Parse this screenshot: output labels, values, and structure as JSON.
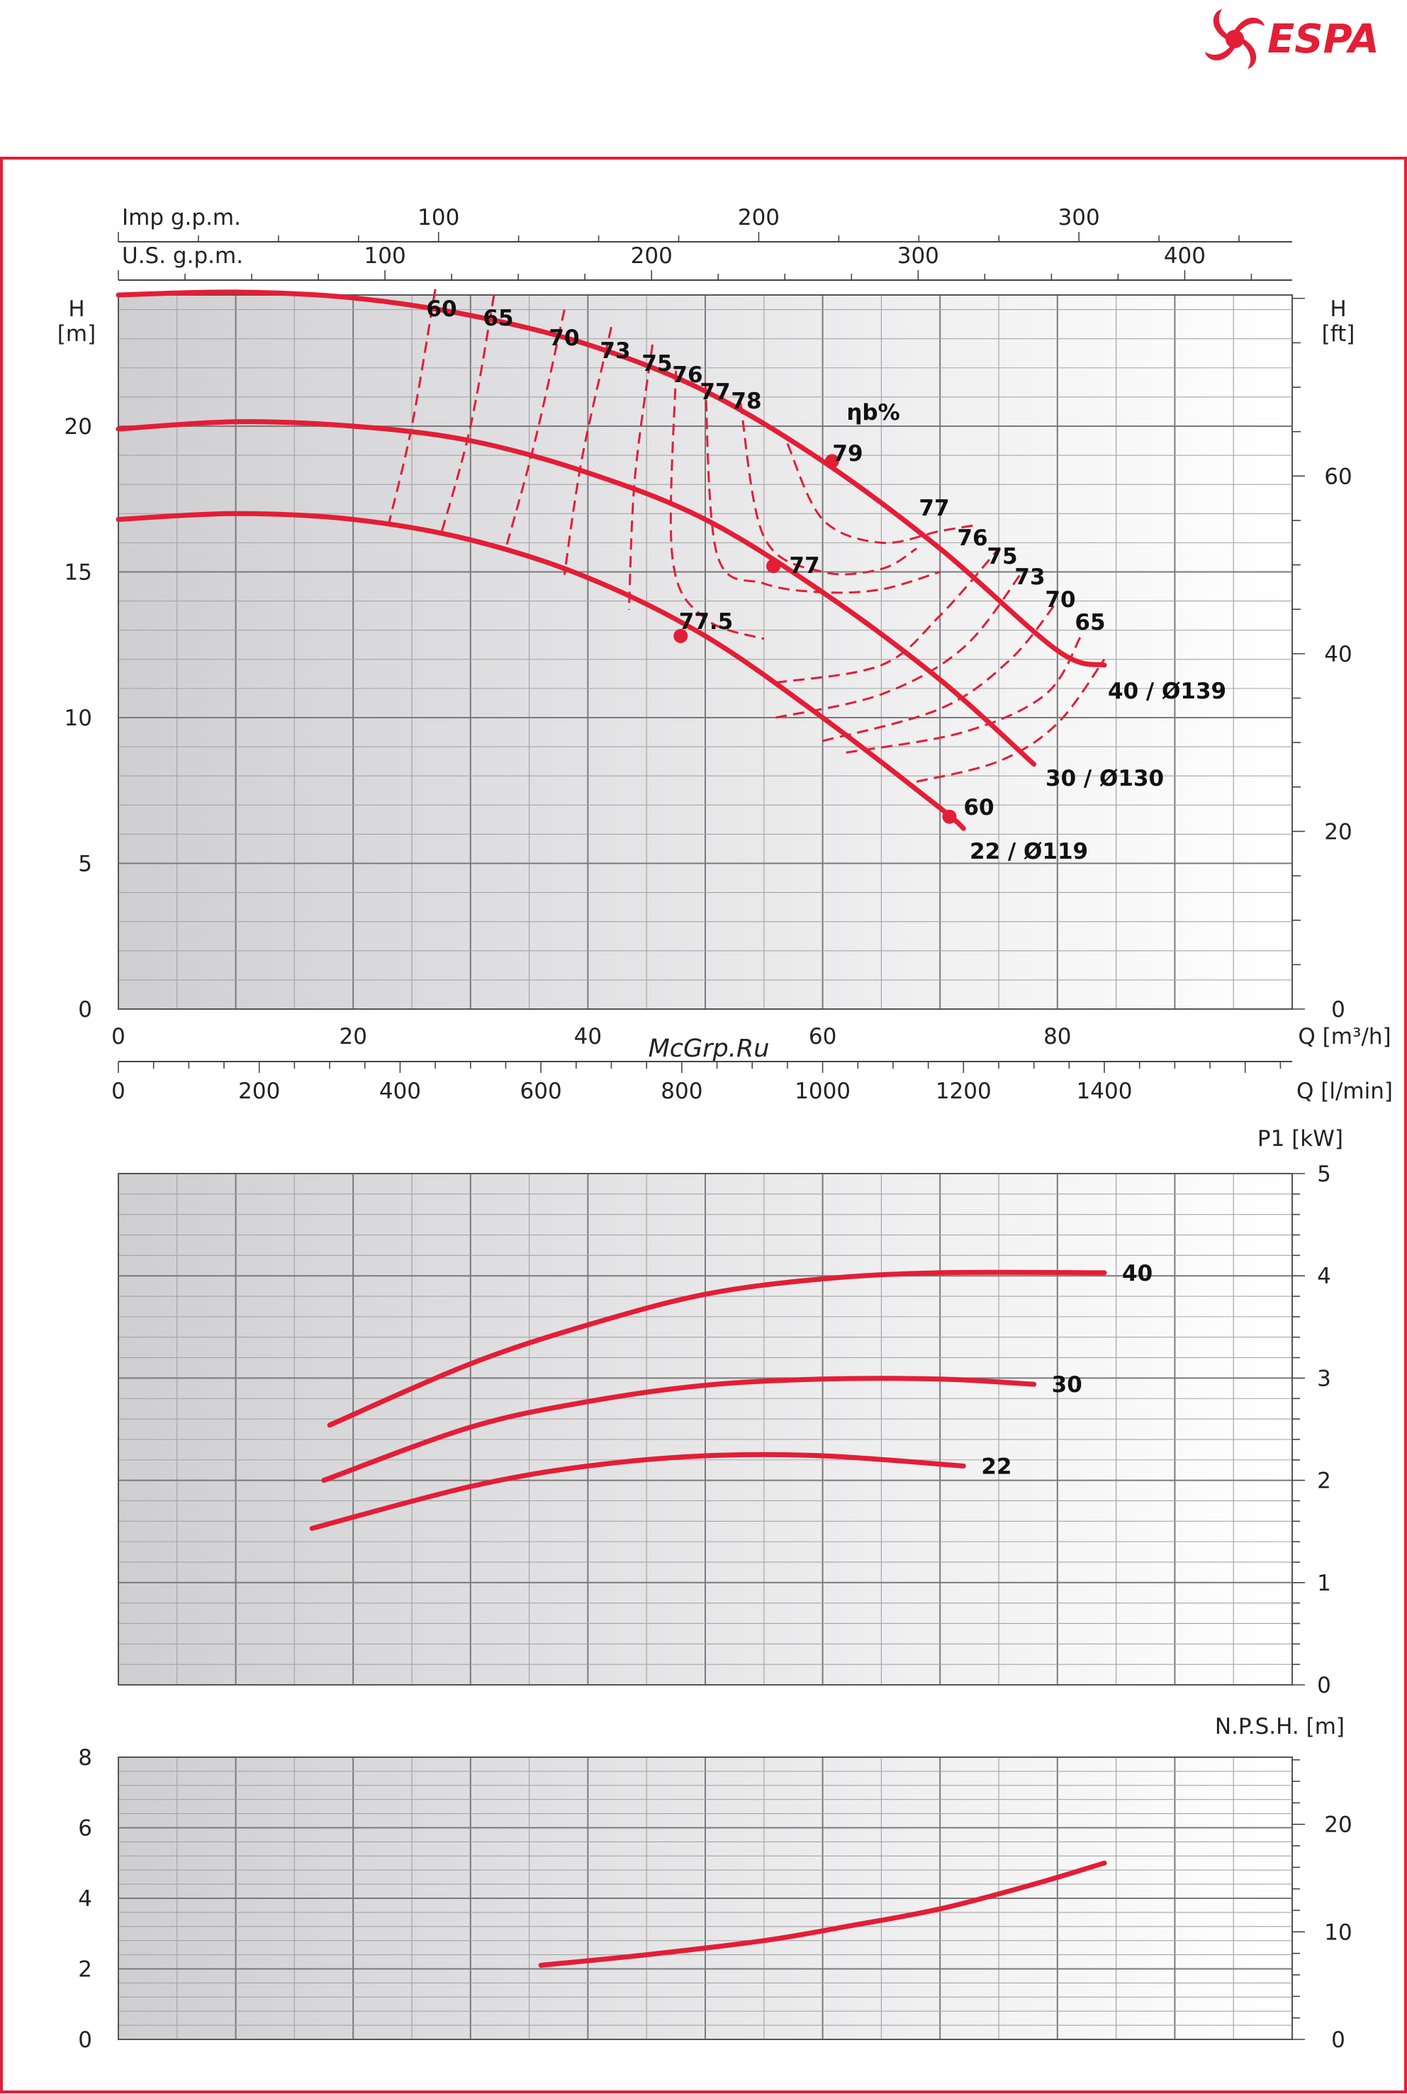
{
  "brand": {
    "name": "ESPA",
    "color": "#e31e36"
  },
  "watermark": "McGrp.Ru",
  "colors": {
    "curve": "#e31e36",
    "grid_major": "#7a7a7a",
    "grid_minor": "#a5a5a5",
    "frame": "#e31e36"
  },
  "chart_data": [
    {
      "type": "line",
      "title": "",
      "x": {
        "label": "Q [m³/h]",
        "range": [
          0,
          100
        ],
        "ticks": [
          0,
          20,
          40,
          60,
          80
        ]
      },
      "secondary_x": [
        {
          "label": "Imp g.p.m.",
          "ticks": [
            100,
            200,
            300
          ],
          "factor": 3.666
        },
        {
          "label": "U.S. g.p.m.",
          "ticks": [
            100,
            200,
            300,
            400
          ],
          "factor": 4.403
        },
        {
          "label": "Q [l/min]",
          "ticks": [
            0,
            200,
            400,
            600,
            800,
            1000,
            1200,
            1400
          ],
          "factor": 16.667
        }
      ],
      "y": {
        "label_line1": "H",
        "label_line2": "[m]",
        "range": [
          0,
          24.5
        ],
        "ticks": [
          0,
          5,
          10,
          15,
          20
        ]
      },
      "secondary_y": {
        "label_line1": "H",
        "label_line2": "[ft]",
        "ticks": [
          0,
          20,
          40,
          60
        ],
        "factor": 3.2808
      },
      "grid": true,
      "series": [
        {
          "name": "40 / Ø139",
          "x": [
            0,
            10,
            20,
            30,
            40,
            50,
            60,
            70,
            80,
            84
          ],
          "y": [
            24.5,
            24.6,
            24.4,
            23.8,
            22.8,
            21.2,
            18.8,
            15.8,
            12.3,
            11.8
          ]
        },
        {
          "name": "30 / Ø130",
          "x": [
            0,
            10,
            20,
            30,
            40,
            50,
            60,
            70,
            78
          ],
          "y": [
            19.9,
            20.15,
            20.0,
            19.5,
            18.4,
            16.8,
            14.3,
            11.3,
            8.4
          ]
        },
        {
          "name": "22 / Ø119",
          "x": [
            0,
            10,
            20,
            30,
            40,
            50,
            60,
            70,
            72
          ],
          "y": [
            16.8,
            17.0,
            16.8,
            16.1,
            14.8,
            12.8,
            10.0,
            6.9,
            6.2
          ]
        }
      ],
      "bep_points": [
        {
          "x": 60.8,
          "y": 18.8,
          "label": "79"
        },
        {
          "x": 55.8,
          "y": 15.2,
          "label": "77"
        },
        {
          "x": 47.9,
          "y": 12.8,
          "label": "77.5"
        },
        {
          "x": 70.8,
          "y": 6.6,
          "label": "60"
        }
      ],
      "efficiency_label": "ηb%",
      "efficiency_curves": [
        {
          "label": "60",
          "x": [
            27,
            25,
            23
          ],
          "y": [
            24.7,
            20.0,
            16.6
          ]
        },
        {
          "label": "65",
          "x": [
            32,
            30,
            27.5
          ],
          "y": [
            24.5,
            20.0,
            16.3
          ]
        },
        {
          "label": "70",
          "x": [
            38,
            35.5,
            33
          ],
          "y": [
            24.0,
            19.5,
            15.8
          ]
        },
        {
          "label": "73",
          "x": [
            42,
            39.5,
            38
          ],
          "y": [
            23.4,
            18.9,
            14.9
          ]
        },
        {
          "label": "75",
          "x": [
            45.5,
            44,
            43.5
          ],
          "y": [
            22.8,
            18.2,
            13.7
          ]
        },
        {
          "label": "76",
          "x": [
            47.5,
            47.2,
            50,
            55
          ],
          "y": [
            21.9,
            15.5,
            13.4,
            12.7
          ]
        },
        {
          "label": "77",
          "x": [
            50,
            51,
            55,
            60,
            65,
            70
          ],
          "y": [
            21.5,
            15.6,
            14.6,
            14.3,
            14.4,
            15.0
          ]
        },
        {
          "label": "78",
          "x": [
            53,
            55,
            60,
            65,
            68
          ],
          "y": [
            20.8,
            16.2,
            15.0,
            15.1,
            15.8
          ]
        },
        {
          "label": "77",
          "x": [
            57,
            60,
            65,
            70,
            73
          ],
          "y": [
            19.4,
            16.8,
            16.0,
            16.4,
            16.6
          ]
        },
        {
          "label": "76",
          "x": [
            56,
            65,
            70,
            75
          ],
          "y": [
            11.2,
            11.8,
            13.5,
            15.8
          ]
        },
        {
          "label": "75",
          "x": [
            56,
            65,
            72,
            77
          ],
          "y": [
            10.0,
            10.8,
            12.4,
            15.0
          ]
        },
        {
          "label": "73",
          "x": [
            60,
            70,
            76,
            80
          ],
          "y": [
            9.2,
            10.3,
            12.0,
            14.0
          ]
        },
        {
          "label": "70",
          "x": [
            62,
            72,
            79,
            82
          ],
          "y": [
            8.8,
            9.5,
            10.8,
            12.8
          ]
        },
        {
          "label": "65",
          "x": [
            68,
            75,
            80,
            84
          ],
          "y": [
            7.8,
            8.5,
            9.8,
            12.0
          ]
        }
      ]
    },
    {
      "type": "line",
      "title": "",
      "x": {
        "range": [
          0,
          100
        ]
      },
      "y": {
        "label": "P1 [kW]",
        "range": [
          0,
          5
        ],
        "ticks": [
          0,
          1,
          2,
          3,
          4,
          5
        ],
        "side": "right"
      },
      "grid": true,
      "series": [
        {
          "name": "40",
          "x": [
            18,
            30,
            40,
            50,
            60,
            70,
            84
          ],
          "y": [
            2.54,
            3.14,
            3.52,
            3.82,
            3.97,
            4.03,
            4.03
          ]
        },
        {
          "name": "30",
          "x": [
            17.5,
            30,
            40,
            50,
            60,
            70,
            78
          ],
          "y": [
            2.0,
            2.52,
            2.77,
            2.93,
            2.99,
            2.99,
            2.94
          ]
        },
        {
          "name": "22",
          "x": [
            16.5,
            30,
            40,
            50,
            60,
            72
          ],
          "y": [
            1.53,
            1.94,
            2.14,
            2.24,
            2.24,
            2.14
          ]
        }
      ]
    },
    {
      "type": "line",
      "title": "",
      "x": {
        "range": [
          0,
          100
        ]
      },
      "y": {
        "label": "N.P.S.H. [m]",
        "range": [
          0,
          8
        ],
        "ticks": [
          0,
          2,
          4,
          6,
          8
        ]
      },
      "secondary_y": {
        "ticks": [
          0,
          10,
          20
        ],
        "factor": 3.2808
      },
      "grid": true,
      "series": [
        {
          "name": "NPSH",
          "x": [
            36,
            45,
            55,
            62,
            70,
            78,
            84
          ],
          "y": [
            2.1,
            2.4,
            2.8,
            3.2,
            3.7,
            4.4,
            5.0
          ]
        }
      ]
    }
  ]
}
